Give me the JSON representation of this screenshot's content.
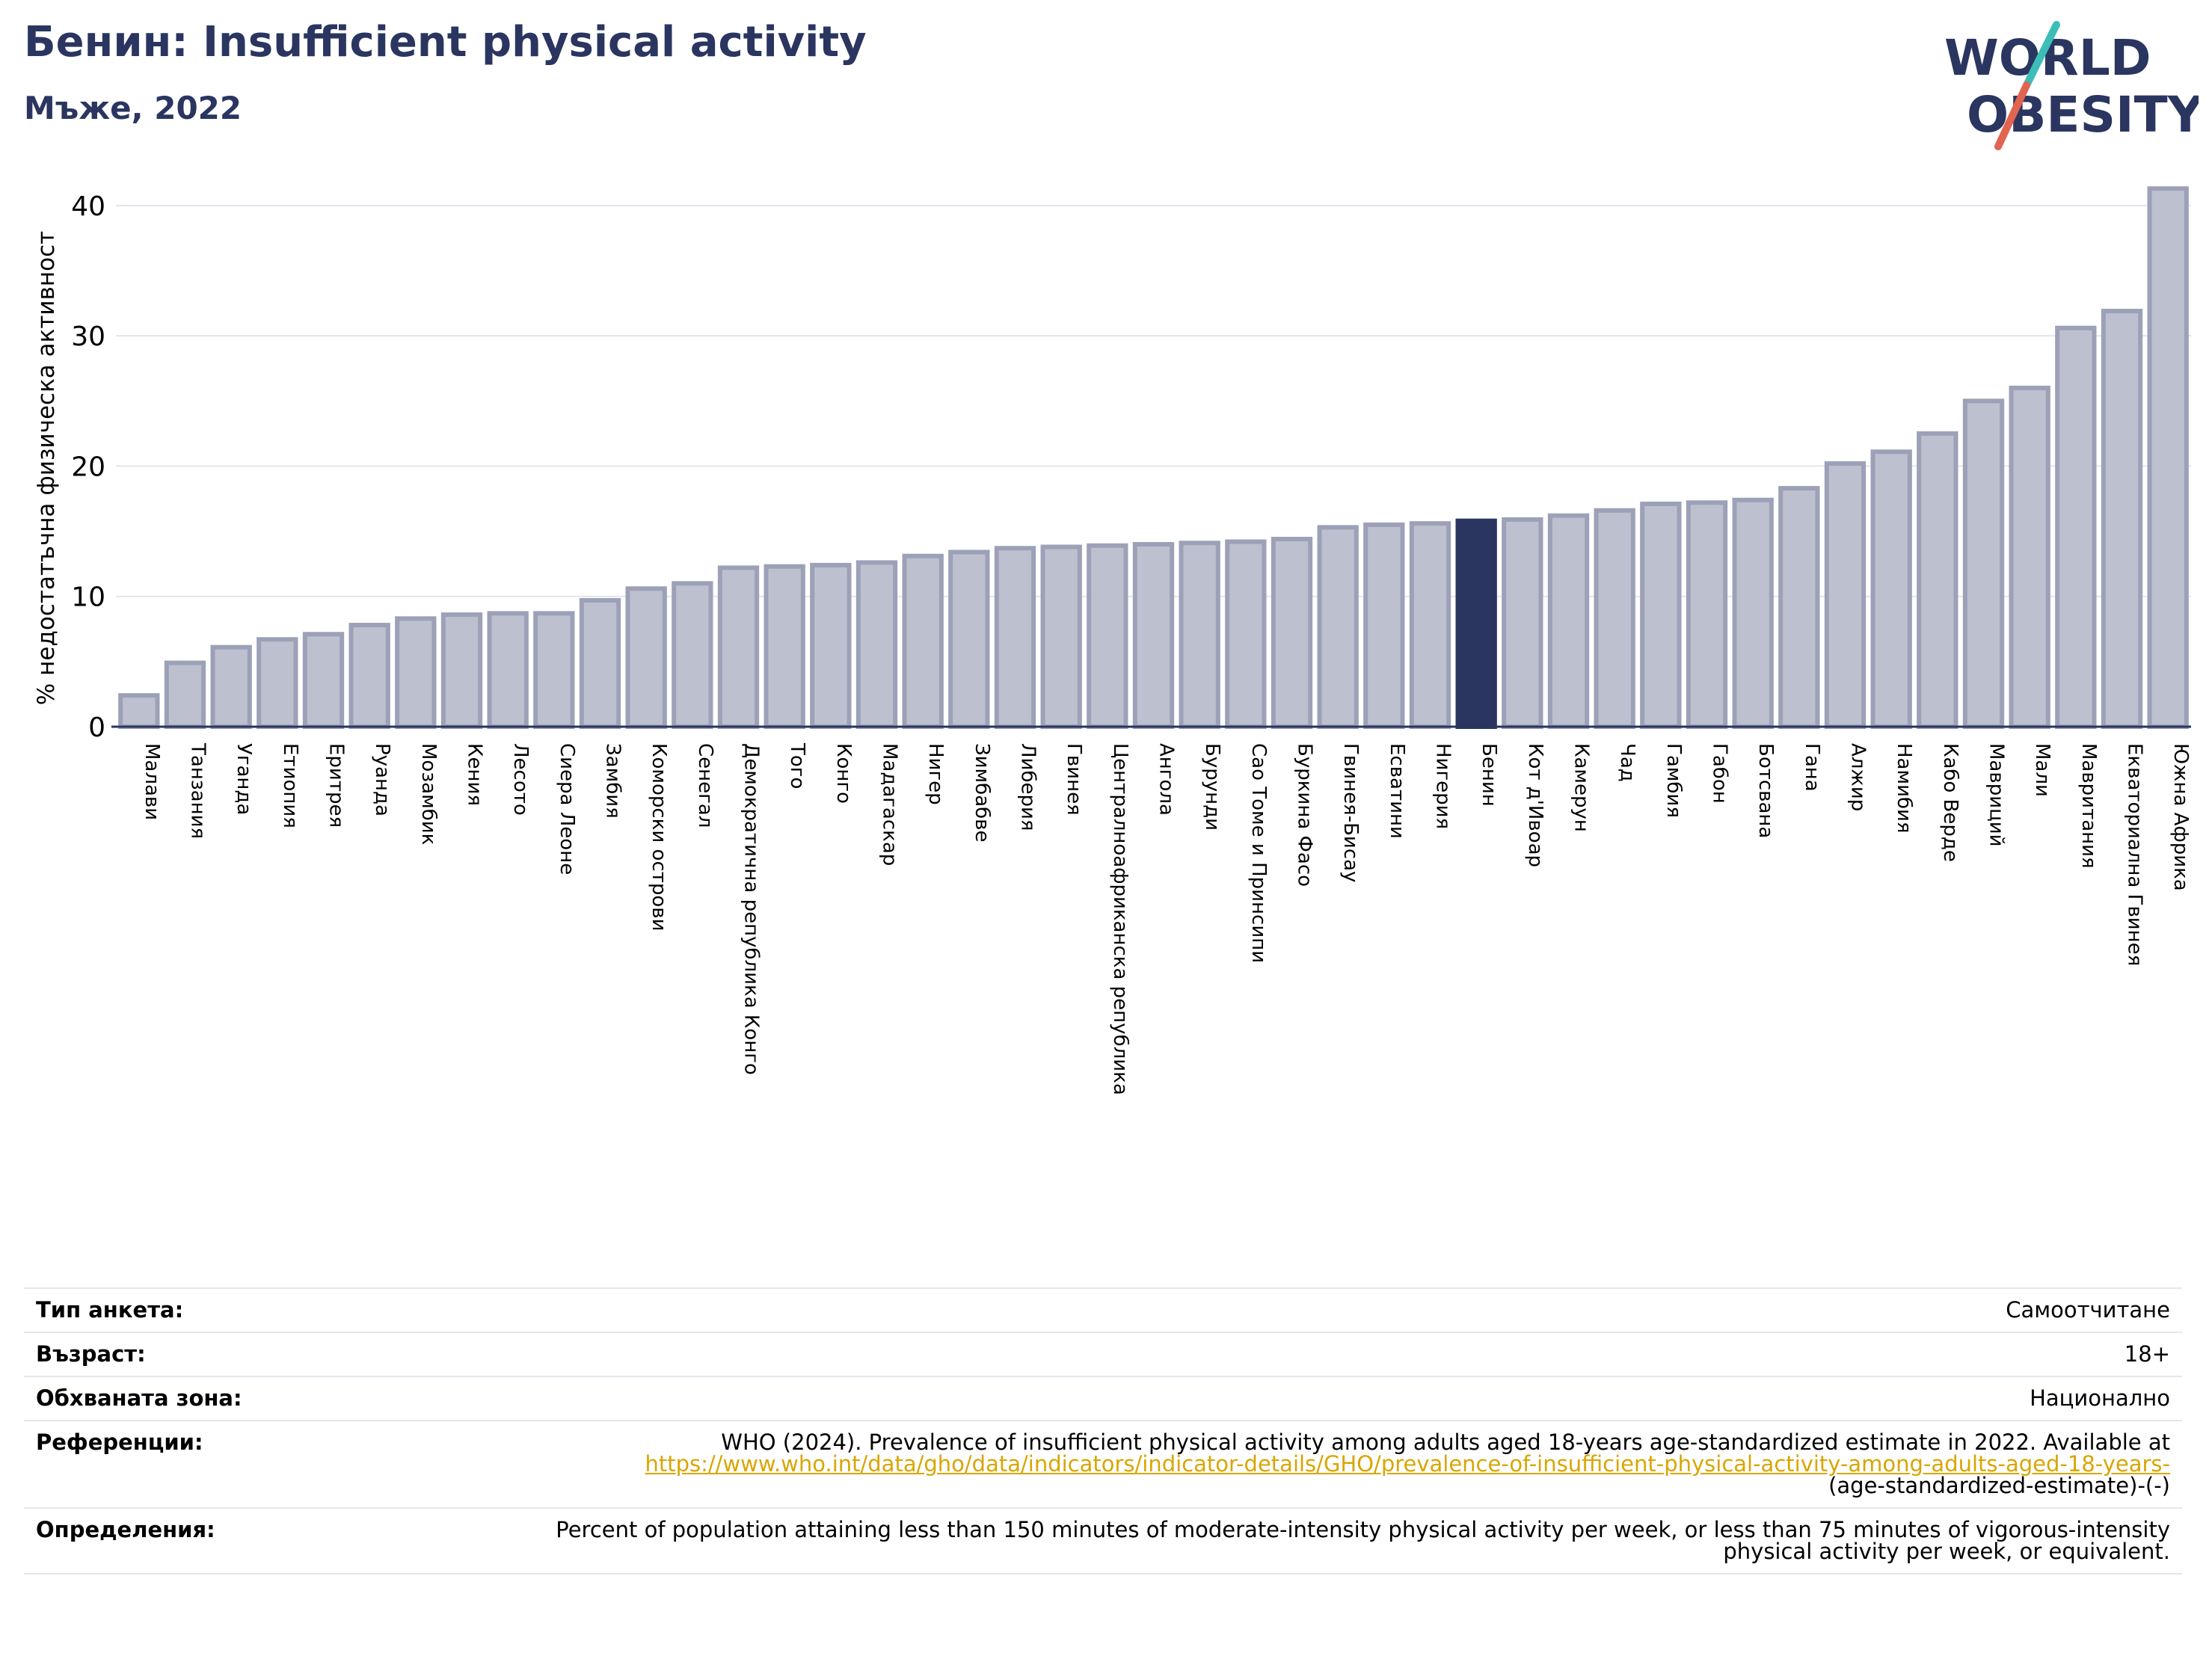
{
  "header": {
    "title": "Бенин: Insufficient physical activity",
    "subtitle": "Мъже, 2022"
  },
  "logo": {
    "line1": "WORLD",
    "line2": "OBESITY"
  },
  "colors": {
    "bar": "#bcc0cf",
    "bar_edge": "#9ca1b8",
    "highlight": "#2a3560",
    "title": "#2a3560",
    "link": "#d9a600"
  },
  "chart_data": {
    "type": "bar",
    "title": "Бенин: Insufficient physical activity",
    "subtitle": "Мъже, 2022",
    "ylabel": "% недостатъчна физическа активност",
    "xlabel": "",
    "ylim": [
      0,
      42
    ],
    "yticks": [
      0,
      10,
      20,
      30,
      40
    ],
    "grid": true,
    "highlight": "Бенин",
    "categories": [
      "Малави",
      "Танзания",
      "Уганда",
      "Етиопия",
      "Еритрея",
      "Руанда",
      "Мозамбик",
      "Кения",
      "Лесото",
      "Сиера Леоне",
      "Замбия",
      "Коморски острови",
      "Сенегал",
      "Демократична република Конго",
      "Того",
      "Конго",
      "Мадагаскар",
      "Нигер",
      "Зимбабве",
      "Либерия",
      "Гвинея",
      "Централноафриканска република",
      "Ангола",
      "Бурунди",
      "Сао Томе и Принсипи",
      "Буркина Фасо",
      "Гвинея-Бисау",
      "Есватини",
      "Нигерия",
      "Бенин",
      "Кот д'Ивоар",
      "Камерун",
      "Чад",
      "Гамбия",
      "Габон",
      "Ботсвана",
      "Гана",
      "Алжир",
      "Намибия",
      "Кабо Верде",
      "Мавриций",
      "Мали",
      "Мавритания",
      "Екваториална Гвинея",
      "Южна Африка"
    ],
    "values": [
      2.4,
      4.9,
      6.1,
      6.7,
      7.1,
      7.8,
      8.3,
      8.6,
      8.7,
      8.7,
      9.7,
      10.6,
      11.0,
      12.2,
      12.3,
      12.4,
      12.6,
      13.1,
      13.4,
      13.7,
      13.8,
      13.9,
      14.0,
      14.1,
      14.2,
      14.4,
      15.3,
      15.5,
      15.6,
      15.8,
      15.9,
      16.2,
      16.6,
      17.1,
      17.2,
      17.4,
      18.3,
      20.2,
      21.1,
      22.5,
      25.0,
      26.0,
      30.6,
      31.9,
      41.3
    ]
  },
  "info": {
    "survey_type_label": "Тип анкета:",
    "survey_type_value": "Самоотчитане",
    "age_label": "Възраст:",
    "age_value": "18+",
    "area_label": "Обхваната зона:",
    "area_value": "Национално",
    "references_label": "Референции:",
    "references_text": "WHO (2024). Prevalence of insufficient physical activity among adults aged 18-years age-standardized estimate in 2022. Available at",
    "references_link": "https://www.who.int/data/gho/data/indicators/indicator-details/GHO/prevalence-of-insufficient-physical-activity-among-adults-aged-18-years-",
    "references_link_tail": "(age-standardized-estimate)-(-)",
    "definitions_label": "Определения:",
    "definitions_text": "Percent of population attaining less than 150 minutes of moderate-intensity physical activity per week, or less than 75 minutes of vigorous-intensity physical activity per week, or equivalent."
  }
}
